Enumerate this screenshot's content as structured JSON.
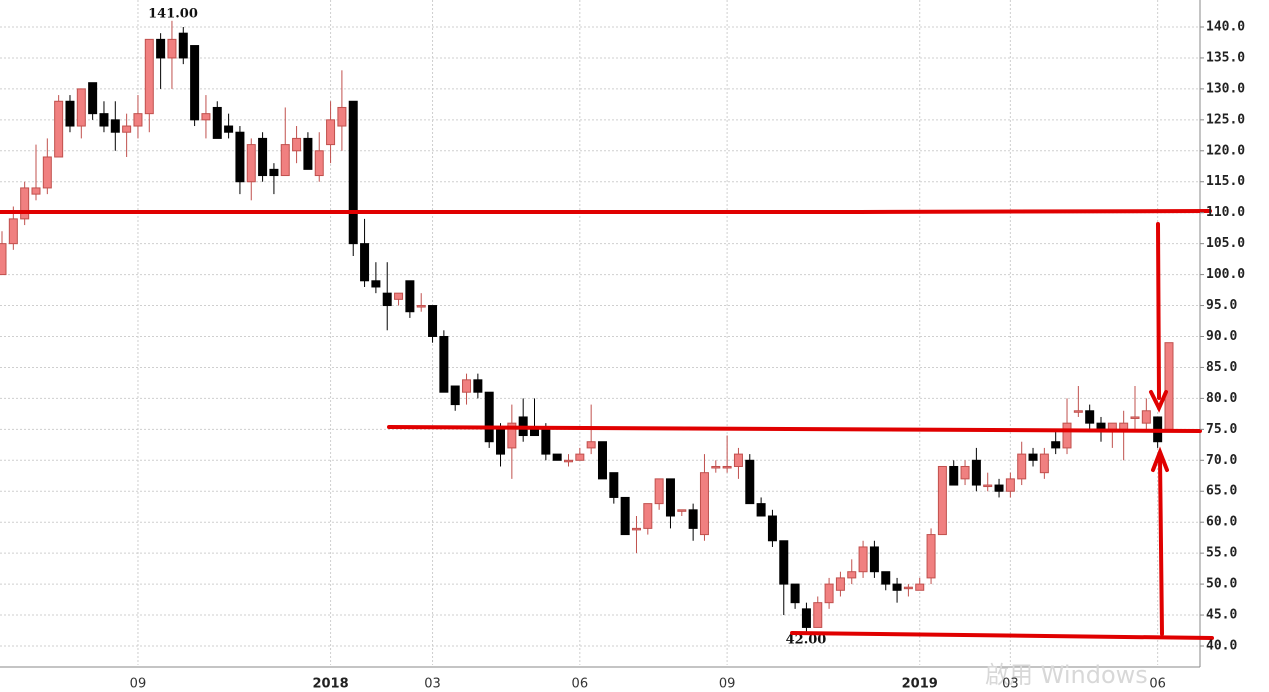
{
  "chart_data": {
    "type": "candlestick",
    "categories": [
      null,
      null,
      null,
      null,
      null,
      null,
      null,
      null,
      null,
      null,
      null,
      null,
      "09",
      null,
      null,
      null,
      null,
      null,
      null,
      null,
      null,
      null,
      null,
      null,
      null,
      null,
      null,
      null,
      null,
      "2018",
      null,
      null,
      null,
      null,
      null,
      null,
      null,
      null,
      "03",
      null,
      null,
      null,
      null,
      null,
      null,
      null,
      null,
      null,
      null,
      null,
      null,
      "06",
      null,
      null,
      null,
      null,
      null,
      null,
      null,
      null,
      null,
      null,
      null,
      null,
      "09",
      null,
      null,
      null,
      null,
      null,
      null,
      null,
      null,
      null,
      null,
      null,
      null,
      null,
      null,
      null,
      null,
      "2019",
      null,
      null,
      null,
      null,
      null,
      null,
      null,
      "03",
      null,
      null,
      null,
      null,
      null,
      null,
      null,
      null,
      null,
      null,
      null,
      null,
      "06",
      null
    ],
    "open": [
      100,
      105,
      109,
      113,
      114,
      119,
      128,
      124,
      131,
      126,
      125,
      123,
      124,
      126,
      138,
      135,
      139,
      137,
      125,
      127,
      124,
      123,
      115,
      122,
      117,
      116,
      120,
      122,
      116,
      121,
      124,
      128,
      105,
      99,
      97,
      96,
      99,
      95,
      95,
      90,
      82,
      81,
      83,
      81,
      75,
      72,
      77,
      75,
      75,
      71,
      70,
      70,
      72,
      73,
      68,
      64,
      59,
      59,
      63,
      67,
      62,
      62,
      58,
      69,
      69,
      69,
      70,
      63,
      61,
      57,
      50,
      46,
      43,
      47,
      49,
      51,
      52,
      56,
      52,
      50,
      49.5,
      49,
      51,
      58,
      69,
      67,
      70,
      66,
      66,
      65,
      67,
      71,
      68,
      73,
      72,
      78,
      78,
      76,
      75,
      75,
      77,
      76,
      77,
      75
    ],
    "high": [
      107,
      111,
      115,
      121,
      122,
      129,
      129,
      130,
      131,
      128,
      128,
      126,
      129,
      138,
      139,
      141,
      140,
      137,
      129,
      128,
      126,
      124,
      122,
      123,
      118,
      127,
      124,
      123,
      123,
      128,
      133,
      128,
      109,
      102,
      102,
      97,
      99,
      97,
      95,
      91,
      82,
      84,
      84,
      81,
      76,
      79,
      80,
      80,
      76,
      71,
      71,
      72,
      79,
      73,
      68,
      64,
      61,
      63,
      67,
      67,
      62,
      63,
      71,
      70,
      74,
      72,
      71,
      64,
      62,
      57,
      50,
      47,
      48,
      51,
      52,
      54,
      57,
      57,
      52,
      51,
      50,
      51,
      59,
      69,
      70,
      70,
      72,
      68,
      67,
      68,
      73,
      72,
      72,
      75,
      80,
      82,
      79,
      77,
      76,
      78,
      82,
      80,
      77,
      89
    ],
    "low": [
      100,
      104,
      108,
      112,
      113,
      119,
      123,
      122,
      125,
      123,
      120,
      119,
      122,
      123,
      130,
      130,
      134,
      124,
      122,
      122,
      122,
      113,
      112,
      115,
      113,
      116,
      118,
      117,
      115,
      118,
      120,
      103,
      98,
      97,
      91,
      95,
      93,
      94,
      89,
      81,
      78,
      79,
      80,
      72,
      69,
      67,
      73,
      74,
      70,
      70,
      69,
      70,
      71,
      67,
      63,
      58,
      55,
      58,
      62,
      59,
      61,
      57,
      57,
      68,
      68,
      67,
      63,
      61,
      56,
      45,
      46,
      42,
      43,
      46,
      48,
      50,
      51,
      51,
      49,
      47,
      48,
      49,
      50,
      58,
      66,
      66,
      65,
      65,
      64,
      64,
      66,
      69,
      67,
      71,
      71,
      77,
      75,
      73,
      72,
      70,
      75,
      75,
      72,
      75
    ],
    "close": [
      105,
      109,
      114,
      114,
      119,
      128,
      124,
      130,
      126,
      124,
      123,
      124,
      126,
      138,
      135,
      138,
      135,
      125,
      126,
      122,
      123,
      115,
      121,
      116,
      116,
      121,
      122,
      117,
      120,
      125,
      127,
      105,
      99,
      98,
      95,
      97,
      94,
      95,
      90,
      81,
      79,
      83,
      81,
      73,
      71,
      76,
      74,
      74,
      71,
      70,
      70,
      71,
      73,
      67,
      64,
      58,
      59,
      63,
      67,
      61,
      62,
      59,
      68,
      69,
      69,
      71,
      63,
      61,
      57,
      50,
      47,
      43,
      47,
      50,
      51,
      52,
      56,
      52,
      50,
      49,
      49.5,
      50,
      58,
      69,
      66,
      69,
      66,
      66,
      65,
      67,
      71,
      70,
      71,
      72,
      76,
      78,
      76,
      75,
      76,
      76,
      77,
      78,
      73,
      89
    ],
    "up_color": "#f08080",
    "up_edge": "#c0504d",
    "down_color": "#000000",
    "ylim": [
      36.93,
      144.36
    ],
    "yticks": [
      {
        "value": 40,
        "label": "40.0"
      },
      {
        "value": 45,
        "label": "45.0"
      },
      {
        "value": 50,
        "label": "50.0"
      },
      {
        "value": 55,
        "label": "55.0"
      },
      {
        "value": 60,
        "label": "60.0"
      },
      {
        "value": 65,
        "label": "65.0"
      },
      {
        "value": 70,
        "label": "70.0"
      },
      {
        "value": 75,
        "label": "75.0"
      },
      {
        "value": 80,
        "label": "80.0"
      },
      {
        "value": 85,
        "label": "85.0"
      },
      {
        "value": 90,
        "label": "90.0"
      },
      {
        "value": 95,
        "label": "95.0"
      },
      {
        "value": 100,
        "label": "100.0"
      },
      {
        "value": 105,
        "label": "105.0"
      },
      {
        "value": 110,
        "label": "110.0"
      },
      {
        "value": 115,
        "label": "115.0"
      },
      {
        "value": 120,
        "label": "120.0"
      },
      {
        "value": 125,
        "label": "125.0"
      },
      {
        "value": 130,
        "label": "130.0"
      },
      {
        "value": 135,
        "label": "135.0"
      },
      {
        "value": 140,
        "label": "140.0"
      }
    ],
    "grid": true,
    "annotations": [
      "141.00",
      "42.00"
    ],
    "watermark": "啟用 Windows"
  }
}
